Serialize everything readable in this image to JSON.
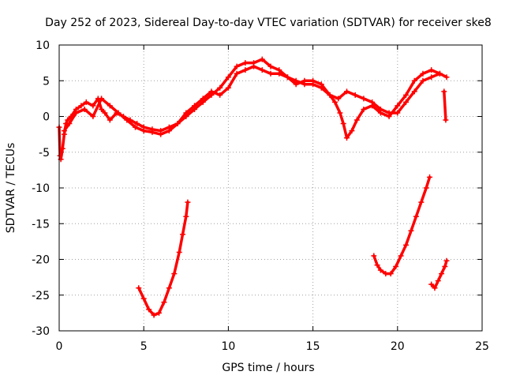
{
  "chart_data": {
    "type": "scatter",
    "title": "Day 252 of 2023, Sidereal Day-to-day VTEC variation (SDTVAR) for receiver ske8",
    "xlabel": "GPS time / hours",
    "ylabel": "SDTVAR / TECUs",
    "xlim": [
      0,
      25
    ],
    "ylim": [
      -30,
      10
    ],
    "xticks": [
      0,
      5,
      10,
      15,
      20,
      25
    ],
    "yticks": [
      -30,
      -25,
      -20,
      -15,
      -10,
      -5,
      0,
      5,
      10
    ],
    "grid": true,
    "marker": "+",
    "series_color": "#ff0000",
    "series": [
      {
        "name": "main trace",
        "x": [
          0.0,
          0.05,
          0.1,
          0.2,
          0.3,
          0.4,
          0.5,
          0.7,
          1.0,
          1.3,
          1.6,
          2.0,
          2.3,
          2.5,
          2.7,
          3.0,
          3.4,
          3.8,
          4.2,
          4.6,
          5.0,
          5.5,
          6.0,
          6.5,
          7.0,
          7.5,
          8.0,
          8.5,
          9.0,
          9.5,
          10.0,
          10.5,
          11.0,
          11.5,
          12.0,
          12.5,
          13.0,
          13.5,
          14.0,
          14.5,
          15.0,
          15.5,
          16.0,
          16.3,
          16.6,
          16.8,
          17.0,
          17.3,
          17.6,
          18.0,
          18.5,
          19.0,
          19.5,
          20.0,
          20.5,
          21.0,
          21.5,
          22.0,
          22.5,
          22.9
        ],
        "y": [
          -1.5,
          -5.5,
          -6.0,
          -4.5,
          -2.5,
          -1.0,
          -0.5,
          0.0,
          1.0,
          1.5,
          2.0,
          1.5,
          2.5,
          1.0,
          0.5,
          -0.5,
          0.5,
          0.0,
          -0.5,
          -1.0,
          -1.5,
          -1.8,
          -2.0,
          -1.5,
          -1.0,
          0.0,
          1.0,
          2.0,
          3.0,
          4.0,
          5.5,
          7.0,
          7.5,
          7.5,
          8.0,
          7.0,
          6.5,
          5.5,
          5.0,
          4.5,
          4.5,
          4.0,
          3.0,
          2.0,
          0.5,
          -1.0,
          -3.0,
          -2.0,
          -0.5,
          1.0,
          1.5,
          0.5,
          0.0,
          1.5,
          3.0,
          5.0,
          6.0,
          6.5,
          6.0,
          5.5
        ]
      },
      {
        "name": "secondary trace",
        "x": [
          0.3,
          0.6,
          1.0,
          1.5,
          2.0,
          2.5,
          3.0,
          3.5,
          4.0,
          4.5,
          5.0,
          5.5,
          6.0,
          6.5,
          7.0,
          7.5,
          8.0,
          8.5,
          9.0,
          9.5,
          10.0,
          10.5,
          11.0,
          11.5,
          12.0,
          12.5,
          13.0,
          13.5,
          14.0,
          14.5,
          15.0,
          15.5,
          16.0,
          16.5,
          17.0,
          17.5,
          18.0,
          18.5,
          19.0,
          19.5,
          20.0,
          20.5,
          21.0,
          21.5,
          22.0,
          22.5
        ],
        "y": [
          -2.0,
          -1.0,
          0.5,
          1.0,
          0.0,
          2.5,
          1.5,
          0.5,
          -0.5,
          -1.5,
          -2.0,
          -2.2,
          -2.5,
          -2.0,
          -1.0,
          0.5,
          1.5,
          2.5,
          3.5,
          3.0,
          4.0,
          6.0,
          6.5,
          7.0,
          6.5,
          6.0,
          6.0,
          5.5,
          4.5,
          5.0,
          5.0,
          4.5,
          3.0,
          2.5,
          3.5,
          3.0,
          2.5,
          2.0,
          1.0,
          0.5,
          0.5,
          2.0,
          3.5,
          5.0,
          5.5,
          6.0
        ]
      },
      {
        "name": "arc 1",
        "x": [
          4.7,
          5.0,
          5.3,
          5.6,
          5.9,
          6.2,
          6.5,
          6.8,
          7.1,
          7.3,
          7.5,
          7.6
        ],
        "y": [
          -24.0,
          -25.5,
          -27.0,
          -27.8,
          -27.5,
          -26.0,
          -24.0,
          -22.0,
          -19.0,
          -16.5,
          -14.0,
          -12.0
        ]
      },
      {
        "name": "arc 2",
        "x": [
          18.6,
          18.8,
          19.0,
          19.3,
          19.6,
          19.9,
          20.2,
          20.5,
          20.8,
          21.1,
          21.4,
          21.7,
          21.9
        ],
        "y": [
          -19.5,
          -20.8,
          -21.5,
          -22.0,
          -22.0,
          -21.0,
          -19.5,
          -18.0,
          -16.0,
          -14.0,
          -12.0,
          -10.0,
          -8.5
        ]
      },
      {
        "name": "arc 3",
        "x": [
          22.0,
          22.2,
          22.4,
          22.6,
          22.8,
          22.9
        ],
        "y": [
          -23.5,
          -24.0,
          -23.0,
          -22.0,
          -21.0,
          -20.2
        ]
      },
      {
        "name": "isolated points",
        "x": [
          22.75,
          22.85
        ],
        "y": [
          3.5,
          -0.5
        ]
      }
    ]
  }
}
